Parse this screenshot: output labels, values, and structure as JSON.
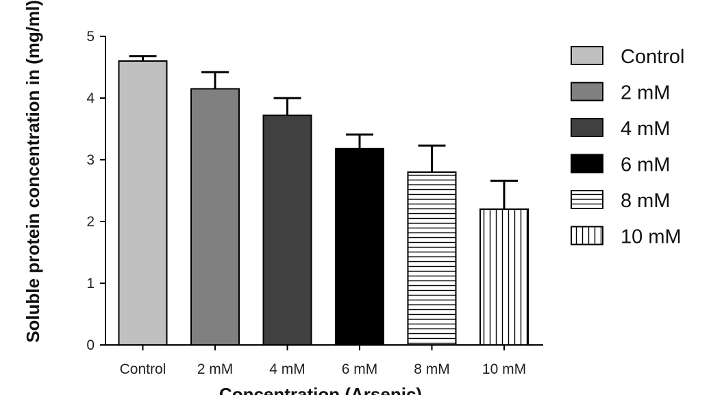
{
  "chart_data": {
    "type": "bar",
    "xlabel": "Concentration (Arsenic)",
    "ylabel": "Soluble protein concentration in (mg/ml)",
    "ylim": [
      0,
      5
    ],
    "yticks": [
      "0",
      "1",
      "2",
      "3",
      "4",
      "5"
    ],
    "categories": [
      "Control",
      "2 mM",
      "4 mM",
      "6 mM",
      "8 mM",
      "10 mM"
    ],
    "values": [
      4.6,
      4.15,
      3.72,
      3.18,
      2.8,
      2.2
    ],
    "errors": [
      0.08,
      0.27,
      0.28,
      0.23,
      0.43,
      0.46
    ],
    "legend": {
      "placement": "right",
      "entries": [
        {
          "label": "Control",
          "fill": "#c0c0c0",
          "pattern": "solid"
        },
        {
          "label": "2 mM",
          "fill": "#808080",
          "pattern": "solid"
        },
        {
          "label": "4 mM",
          "fill": "#404040",
          "pattern": "solid"
        },
        {
          "label": "6 mM",
          "fill": "#000000",
          "pattern": "solid"
        },
        {
          "label": "8 mM",
          "fill": "#ffffff",
          "pattern": "horizontal-lines"
        },
        {
          "label": "10 mM",
          "fill": "#ffffff",
          "pattern": "vertical-lines"
        }
      ]
    },
    "grid": false
  }
}
